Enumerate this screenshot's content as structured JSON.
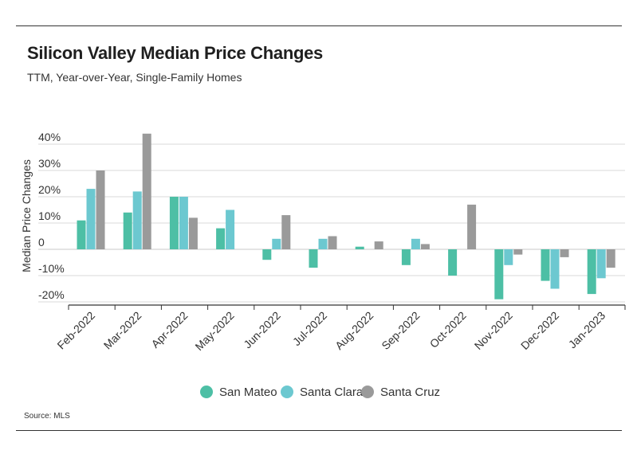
{
  "header": {
    "title": "Silicon Valley Median Price Changes",
    "subtitle": "TTM, Year-over-Year, Single-Family Homes"
  },
  "footer": {
    "source": "Source:  MLS"
  },
  "colors": {
    "San Mateo": "#4dbfa5",
    "Santa Clara": "#6cc8d0",
    "Santa Cruz": "#9a9a9a"
  },
  "chart_data": {
    "type": "bar",
    "title": "Silicon Valley Median Price Changes",
    "subtitle": "TTM, Year-over-Year, Single-Family Homes",
    "xlabel": "",
    "ylabel": "Median Price Changes",
    "ylim": [
      -21,
      44
    ],
    "yticks": [
      40,
      30,
      20,
      10,
      0,
      -10,
      -20
    ],
    "ytick_labels": [
      "40%",
      "30%",
      "20%",
      "10%",
      "0",
      "-10%",
      "-20%"
    ],
    "grid": true,
    "legend": "bottom",
    "categories": [
      "Feb-2022",
      "Mar-2022",
      "Apr-2022",
      "May-2022",
      "Jun-2022",
      "Jul-2022",
      "Aug-2022",
      "Sep-2022",
      "Oct-2022",
      "Nov-2022",
      "Dec-2022",
      "Jan-2023"
    ],
    "series": [
      {
        "name": "San Mateo",
        "values": [
          11,
          14,
          20,
          8,
          -4,
          -7,
          1,
          -6,
          -10,
          -19,
          -12,
          -17
        ]
      },
      {
        "name": "Santa Clara",
        "values": [
          23,
          22,
          20,
          15,
          4,
          4,
          0,
          4,
          0,
          -6,
          -15,
          -11
        ]
      },
      {
        "name": "Santa Cruz",
        "values": [
          30,
          44,
          12,
          0,
          13,
          5,
          3,
          2,
          17,
          -2,
          -3,
          -7
        ]
      }
    ]
  }
}
